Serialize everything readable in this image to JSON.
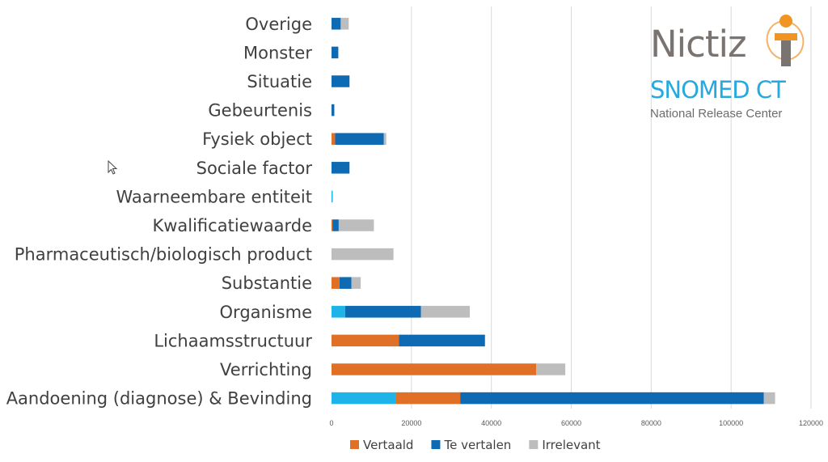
{
  "chart_data": {
    "type": "bar",
    "orientation": "horizontal",
    "stacked": true,
    "title": "",
    "xlabel": "",
    "ylabel": "",
    "xlim": [
      0,
      120000
    ],
    "grid": true,
    "legend_position": "bottom",
    "x_ticks": [
      "0",
      "20000",
      "40000",
      "60000",
      "80000",
      "100000",
      "120000"
    ],
    "x_tick_values": [
      0,
      20000,
      40000,
      60000,
      80000,
      100000,
      120000
    ],
    "categories": [
      "Overige",
      "Monster",
      "Situatie",
      "Gebeurtenis",
      "Fysiek object",
      "Sociale factor",
      "Waarneembare entiteit",
      "Kwalificatiewaarde",
      "Pharmaceutisch/biologisch product",
      "Substantie",
      "Organisme",
      "Lichaamsstructuur",
      "Verrichting",
      "Aandoening (diagnose) & Bevinding"
    ],
    "series": [
      {
        "name": "",
        "color": "#1eb4ea",
        "in_legend": false,
        "values": [
          0,
          0,
          0,
          0,
          0,
          0,
          300,
          0,
          0,
          0,
          3400,
          0,
          0,
          16000
        ]
      },
      {
        "name": "Vertaald",
        "color": "#e07026",
        "in_legend": true,
        "values": [
          0,
          0,
          0,
          0,
          900,
          0,
          0,
          300,
          0,
          2000,
          0,
          16900,
          51200,
          16200
        ]
      },
      {
        "name": "Te vertalen",
        "color": "#0f6ab4",
        "in_legend": true,
        "values": [
          2300,
          1700,
          4500,
          700,
          12200,
          4500,
          0,
          1500,
          0,
          3000,
          19000,
          21500,
          0,
          76000
        ]
      },
      {
        "name": "Irrelevant",
        "color": "#bdbdbd",
        "in_legend": true,
        "values": [
          2000,
          0,
          0,
          0,
          600,
          0,
          0,
          8800,
          15500,
          2300,
          12200,
          0,
          7300,
          2800
        ]
      }
    ]
  },
  "logo": {
    "name": "Nictiz",
    "snomed": "SNOMED CT",
    "subtitle": "National Release Center",
    "colors": {
      "grey": "#7a7471",
      "blue": "#25a9e0",
      "orange": "#f29422"
    }
  }
}
